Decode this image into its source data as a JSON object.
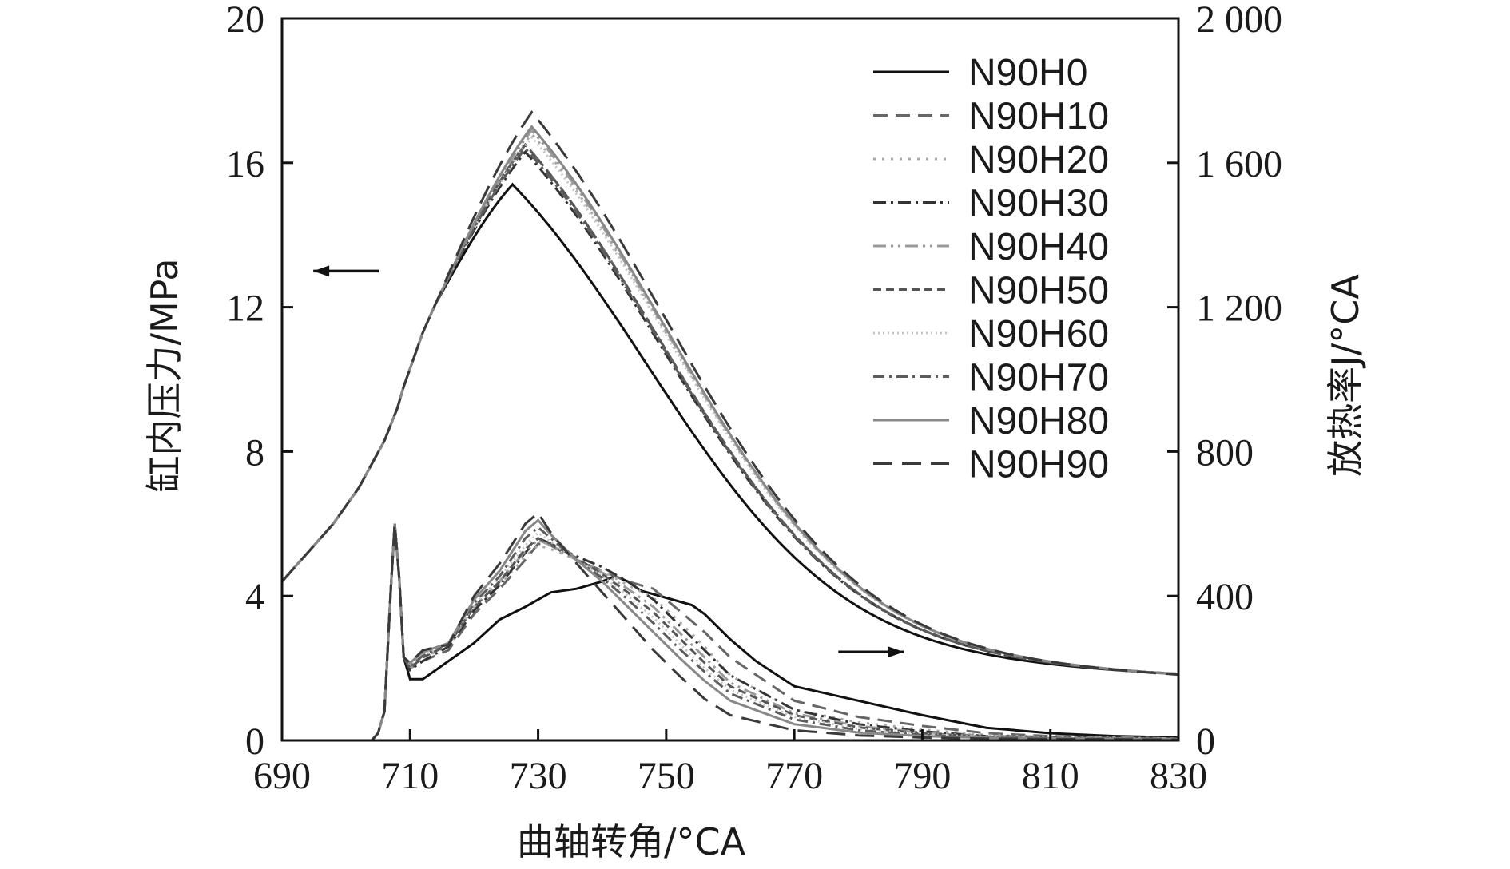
{
  "chart_data": {
    "type": "line",
    "xlabel": "曲轴转角/°CA",
    "ylabel_left": "缸内压力/MPa",
    "ylabel_right": "放热率J/°CA",
    "xlim": [
      690,
      830
    ],
    "ylim_left": [
      0,
      20
    ],
    "ylim_right": [
      0,
      2000
    ],
    "x_ticks": [
      "690",
      "710",
      "730",
      "750",
      "770",
      "790",
      "810",
      "830"
    ],
    "y_left_ticks": [
      "0",
      "4",
      "8",
      "12",
      "16",
      "20"
    ],
    "y_right_ticks": [
      "0",
      "400",
      "800",
      "1 200",
      "1 600",
      "2 000"
    ],
    "grid": false,
    "legend_position": "top-right",
    "annotations": [
      {
        "kind": "arrow",
        "direction": "left",
        "axis": "left",
        "x": 700,
        "y": 13.0
      },
      {
        "kind": "arrow",
        "direction": "right",
        "axis": "right",
        "x": 782,
        "y": 245
      }
    ],
    "series": [
      {
        "name": "N90H0",
        "color": "#111111",
        "dash": "solid",
        "pressure_peak": 15.4,
        "pressure_peak_x": 726,
        "hrr": [
          [
            690,
            0
          ],
          [
            704,
            0
          ],
          [
            705,
            20
          ],
          [
            706,
            80
          ],
          [
            707,
            420
          ],
          [
            707.6,
            600
          ],
          [
            708.3,
            450
          ],
          [
            709,
            230
          ],
          [
            710,
            170
          ],
          [
            712,
            170
          ],
          [
            716,
            220
          ],
          [
            720,
            270
          ],
          [
            724,
            335
          ],
          [
            728,
            370
          ],
          [
            732,
            410
          ],
          [
            736,
            420
          ],
          [
            740,
            440
          ],
          [
            742,
            455
          ],
          [
            744,
            440
          ],
          [
            746,
            415
          ],
          [
            750,
            395
          ],
          [
            754,
            375
          ],
          [
            756,
            350
          ],
          [
            760,
            280
          ],
          [
            764,
            220
          ],
          [
            770,
            150
          ],
          [
            780,
            110
          ],
          [
            790,
            70
          ],
          [
            800,
            35
          ],
          [
            810,
            20
          ],
          [
            820,
            12
          ],
          [
            830,
            8
          ]
        ]
      },
      {
        "name": "N90H10",
        "color": "#666666",
        "dash": "18 10",
        "pressure_peak": 16.5,
        "pressure_peak_x": 728,
        "hrr": [
          [
            690,
            0
          ],
          [
            704,
            0
          ],
          [
            705,
            20
          ],
          [
            706,
            80
          ],
          [
            707,
            420
          ],
          [
            707.6,
            600
          ],
          [
            708.3,
            450
          ],
          [
            709,
            230
          ],
          [
            710,
            200
          ],
          [
            712,
            220
          ],
          [
            716,
            250
          ],
          [
            720,
            350
          ],
          [
            724,
            420
          ],
          [
            728,
            500
          ],
          [
            730,
            545
          ],
          [
            732,
            540
          ],
          [
            736,
            500
          ],
          [
            740,
            470
          ],
          [
            744,
            440
          ],
          [
            748,
            420
          ],
          [
            752,
            360
          ],
          [
            756,
            300
          ],
          [
            760,
            230
          ],
          [
            770,
            110
          ],
          [
            780,
            65
          ],
          [
            790,
            40
          ],
          [
            800,
            20
          ],
          [
            810,
            12
          ],
          [
            830,
            5
          ]
        ]
      },
      {
        "name": "N90H20",
        "color": "#a8a8a8",
        "dash": "3 8",
        "pressure_peak": 16.8,
        "pressure_peak_x": 729,
        "hrr": [
          [
            690,
            0
          ],
          [
            704,
            0
          ],
          [
            705,
            20
          ],
          [
            706,
            80
          ],
          [
            707,
            420
          ],
          [
            707.6,
            600
          ],
          [
            708.3,
            450
          ],
          [
            709,
            230
          ],
          [
            710,
            200
          ],
          [
            712,
            230
          ],
          [
            716,
            260
          ],
          [
            720,
            360
          ],
          [
            724,
            430
          ],
          [
            728,
            510
          ],
          [
            730,
            540
          ],
          [
            732,
            530
          ],
          [
            736,
            500
          ],
          [
            740,
            470
          ],
          [
            744,
            430
          ],
          [
            748,
            395
          ],
          [
            752,
            330
          ],
          [
            756,
            260
          ],
          [
            760,
            180
          ],
          [
            770,
            85
          ],
          [
            780,
            50
          ],
          [
            790,
            30
          ],
          [
            800,
            15
          ],
          [
            810,
            10
          ],
          [
            830,
            5
          ]
        ]
      },
      {
        "name": "N90H30",
        "color": "#333333",
        "dash": "16 6 3 6",
        "pressure_peak": 16.3,
        "pressure_peak_x": 728,
        "hrr": [
          [
            690,
            0
          ],
          [
            704,
            0
          ],
          [
            705,
            20
          ],
          [
            706,
            80
          ],
          [
            707,
            420
          ],
          [
            707.6,
            600
          ],
          [
            708.3,
            450
          ],
          [
            709,
            230
          ],
          [
            710,
            195
          ],
          [
            712,
            220
          ],
          [
            716,
            260
          ],
          [
            720,
            360
          ],
          [
            724,
            430
          ],
          [
            728,
            520
          ],
          [
            730,
            560
          ],
          [
            732,
            545
          ],
          [
            736,
            510
          ],
          [
            740,
            480
          ],
          [
            744,
            440
          ],
          [
            748,
            390
          ],
          [
            752,
            320
          ],
          [
            756,
            250
          ],
          [
            760,
            180
          ],
          [
            770,
            85
          ],
          [
            780,
            45
          ],
          [
            790,
            25
          ],
          [
            800,
            12
          ],
          [
            830,
            5
          ]
        ]
      },
      {
        "name": "N90H40",
        "color": "#9a9a9a",
        "dash": "16 6 3 6 3 6",
        "pressure_peak": 16.9,
        "pressure_peak_x": 729,
        "hrr": [
          [
            690,
            0
          ],
          [
            704,
            0
          ],
          [
            705,
            20
          ],
          [
            706,
            80
          ],
          [
            707,
            420
          ],
          [
            707.6,
            600
          ],
          [
            708.3,
            450
          ],
          [
            709,
            230
          ],
          [
            710,
            205
          ],
          [
            712,
            230
          ],
          [
            716,
            265
          ],
          [
            720,
            370
          ],
          [
            724,
            440
          ],
          [
            728,
            525
          ],
          [
            730,
            555
          ],
          [
            732,
            540
          ],
          [
            736,
            500
          ],
          [
            740,
            465
          ],
          [
            744,
            420
          ],
          [
            748,
            370
          ],
          [
            752,
            300
          ],
          [
            756,
            230
          ],
          [
            760,
            160
          ],
          [
            770,
            75
          ],
          [
            780,
            40
          ],
          [
            790,
            22
          ],
          [
            800,
            12
          ],
          [
            830,
            5
          ]
        ]
      },
      {
        "name": "N90H50",
        "color": "#555555",
        "dash": "10 6",
        "pressure_peak": 16.5,
        "pressure_peak_x": 728,
        "hrr": [
          [
            690,
            0
          ],
          [
            704,
            0
          ],
          [
            705,
            20
          ],
          [
            706,
            80
          ],
          [
            707,
            420
          ],
          [
            707.6,
            600
          ],
          [
            708.3,
            450
          ],
          [
            709,
            230
          ],
          [
            710,
            200
          ],
          [
            712,
            230
          ],
          [
            716,
            265
          ],
          [
            720,
            370
          ],
          [
            724,
            440
          ],
          [
            728,
            530
          ],
          [
            730,
            560
          ],
          [
            732,
            545
          ],
          [
            736,
            505
          ],
          [
            740,
            460
          ],
          [
            744,
            410
          ],
          [
            748,
            355
          ],
          [
            752,
            285
          ],
          [
            756,
            215
          ],
          [
            760,
            150
          ],
          [
            770,
            70
          ],
          [
            780,
            36
          ],
          [
            790,
            20
          ],
          [
            800,
            10
          ],
          [
            830,
            4
          ]
        ]
      },
      {
        "name": "N90H60",
        "color": "#c4c4c4",
        "dash": "2 4",
        "pressure_peak": 16.7,
        "pressure_peak_x": 729,
        "hrr": [
          [
            690,
            0
          ],
          [
            704,
            0
          ],
          [
            705,
            20
          ],
          [
            706,
            80
          ],
          [
            707,
            420
          ],
          [
            707.6,
            600
          ],
          [
            708.3,
            450
          ],
          [
            709,
            230
          ],
          [
            710,
            210
          ],
          [
            712,
            235
          ],
          [
            716,
            270
          ],
          [
            720,
            375
          ],
          [
            724,
            450
          ],
          [
            728,
            540
          ],
          [
            730,
            575
          ],
          [
            732,
            550
          ],
          [
            736,
            500
          ],
          [
            740,
            455
          ],
          [
            744,
            400
          ],
          [
            748,
            340
          ],
          [
            752,
            270
          ],
          [
            756,
            200
          ],
          [
            760,
            140
          ],
          [
            770,
            65
          ],
          [
            780,
            32
          ],
          [
            790,
            18
          ],
          [
            800,
            9
          ],
          [
            830,
            4
          ]
        ]
      },
      {
        "name": "N90H70",
        "color": "#5c5c5c",
        "dash": "14 6 3 6",
        "pressure_peak": 16.4,
        "pressure_peak_x": 728,
        "hrr": [
          [
            690,
            0
          ],
          [
            704,
            0
          ],
          [
            705,
            20
          ],
          [
            706,
            80
          ],
          [
            707,
            420
          ],
          [
            707.6,
            600
          ],
          [
            708.3,
            450
          ],
          [
            709,
            230
          ],
          [
            710,
            205
          ],
          [
            712,
            235
          ],
          [
            716,
            270
          ],
          [
            720,
            380
          ],
          [
            724,
            455
          ],
          [
            728,
            560
          ],
          [
            730,
            590
          ],
          [
            732,
            560
          ],
          [
            736,
            500
          ],
          [
            740,
            450
          ],
          [
            744,
            390
          ],
          [
            748,
            325
          ],
          [
            752,
            255
          ],
          [
            756,
            190
          ],
          [
            760,
            130
          ],
          [
            770,
            58
          ],
          [
            780,
            28
          ],
          [
            790,
            15
          ],
          [
            800,
            8
          ],
          [
            830,
            4
          ]
        ]
      },
      {
        "name": "N90H80",
        "color": "#888888",
        "dash": "solid",
        "pressure_peak": 17.0,
        "pressure_peak_x": 729,
        "hrr": [
          [
            690,
            0
          ],
          [
            704,
            0
          ],
          [
            705,
            20
          ],
          [
            706,
            80
          ],
          [
            707,
            420
          ],
          [
            707.6,
            600
          ],
          [
            708.3,
            450
          ],
          [
            709,
            230
          ],
          [
            710,
            215
          ],
          [
            712,
            245
          ],
          [
            716,
            270
          ],
          [
            720,
            390
          ],
          [
            724,
            470
          ],
          [
            728,
            580
          ],
          [
            730,
            610
          ],
          [
            732,
            570
          ],
          [
            736,
            500
          ],
          [
            740,
            440
          ],
          [
            744,
            370
          ],
          [
            748,
            300
          ],
          [
            752,
            230
          ],
          [
            756,
            165
          ],
          [
            760,
            110
          ],
          [
            770,
            45
          ],
          [
            780,
            22
          ],
          [
            790,
            12
          ],
          [
            800,
            7
          ],
          [
            830,
            3
          ]
        ]
      },
      {
        "name": "N90H90",
        "color": "#3a3a3a",
        "dash": "24 12",
        "pressure_peak": 17.4,
        "pressure_peak_x": 729,
        "hrr": [
          [
            690,
            0
          ],
          [
            704,
            0
          ],
          [
            705,
            20
          ],
          [
            706,
            80
          ],
          [
            707,
            420
          ],
          [
            707.6,
            600
          ],
          [
            708.3,
            450
          ],
          [
            709,
            230
          ],
          [
            710,
            215
          ],
          [
            712,
            250
          ],
          [
            716,
            265
          ],
          [
            720,
            400
          ],
          [
            724,
            490
          ],
          [
            728,
            600
          ],
          [
            730,
            630
          ],
          [
            732,
            575
          ],
          [
            736,
            490
          ],
          [
            740,
            410
          ],
          [
            744,
            330
          ],
          [
            748,
            250
          ],
          [
            752,
            180
          ],
          [
            756,
            115
          ],
          [
            760,
            70
          ],
          [
            770,
            28
          ],
          [
            780,
            14
          ],
          [
            790,
            8
          ],
          [
            800,
            5
          ],
          [
            830,
            2
          ]
        ]
      }
    ]
  }
}
